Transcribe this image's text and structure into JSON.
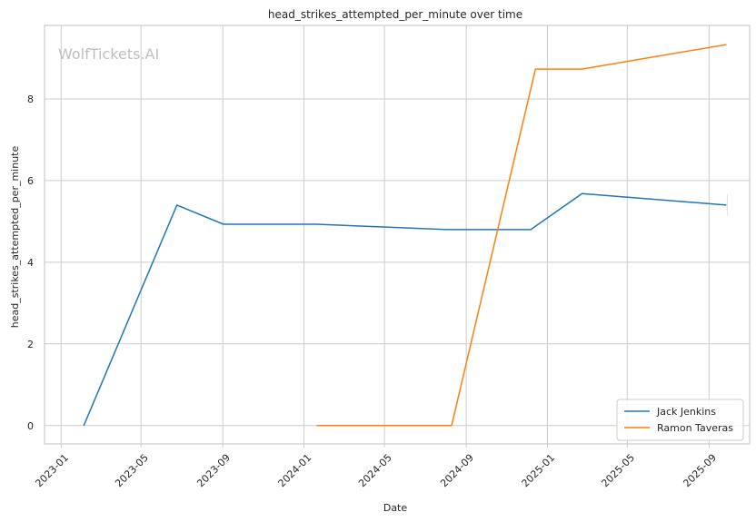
{
  "chart_data": {
    "type": "line",
    "title": "head_strikes_attempted_per_minute over time",
    "xlabel": "Date",
    "ylabel": "head_strikes_attempted_per_minute",
    "watermark": "WolfTickets.AI",
    "x_ticks": [
      "2023-01",
      "2023-05",
      "2023-09",
      "2024-01",
      "2024-05",
      "2024-09",
      "2025-01",
      "2025-05",
      "2025-09"
    ],
    "y_ticks": [
      0,
      2,
      4,
      6,
      8
    ],
    "xlim": [
      "2022-12-07",
      "2025-11-01"
    ],
    "ylim": [
      -0.45,
      9.8
    ],
    "grid": true,
    "legend_position": "lower-right",
    "series": [
      {
        "name": "Jack Jenkins",
        "color": "#1f77b4",
        "points": [
          {
            "x": "2023-02-04",
            "y": 0.0
          },
          {
            "x": "2023-06-24",
            "y": 5.4
          },
          {
            "x": "2023-09-02",
            "y": 4.93
          },
          {
            "x": "2024-01-20",
            "y": 4.93
          },
          {
            "x": "2024-08-03",
            "y": 4.8
          },
          {
            "x": "2024-12-07",
            "y": 4.8
          },
          {
            "x": "2025-02-22",
            "y": 5.68
          },
          {
            "x": "2025-09-27",
            "y": 5.4
          }
        ]
      },
      {
        "name": "Ramon Taveras",
        "color": "#ff7f0e",
        "points": [
          {
            "x": "2024-01-20",
            "y": 0.0
          },
          {
            "x": "2024-08-10",
            "y": 0.0
          },
          {
            "x": "2024-12-14",
            "y": 8.73
          },
          {
            "x": "2025-02-22",
            "y": 8.73
          },
          {
            "x": "2025-09-27",
            "y": 9.33
          }
        ]
      }
    ]
  }
}
